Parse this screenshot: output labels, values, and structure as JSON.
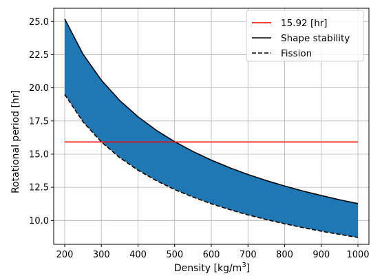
{
  "chart_data": {
    "type": "area",
    "xlabel_text": "Density [kg/m",
    "xlabel_sup": "3",
    "xlabel_tail": "]",
    "ylabel": "Rotational period [hr]",
    "xlim": [
      170,
      1030
    ],
    "ylim": [
      8.2,
      26.0
    ],
    "x_ticks": [
      200,
      300,
      400,
      500,
      600,
      700,
      800,
      900,
      1000
    ],
    "x_tick_labels": [
      "200",
      "300",
      "400",
      "500",
      "600",
      "700",
      "800",
      "900",
      "1000"
    ],
    "y_ticks": [
      10.0,
      12.5,
      15.0,
      17.5,
      20.0,
      22.5,
      25.0
    ],
    "y_tick_labels": [
      "10.0",
      "12.5",
      "15.0",
      "17.5",
      "20.0",
      "22.5",
      "25.0"
    ],
    "grid": true,
    "legend_position": "top-right",
    "fill_color": "#1f77b4",
    "series": [
      {
        "name": "15.92 [hr]",
        "style": "solid",
        "color": "#ff0000",
        "x": [
          200,
          1000
        ],
        "y": [
          15.92,
          15.92
        ]
      },
      {
        "name": "Shape stability",
        "style": "solid",
        "color": "#000000",
        "x": [
          200,
          250,
          300,
          350,
          400,
          450,
          500,
          550,
          600,
          650,
          700,
          750,
          800,
          850,
          900,
          950,
          1000
        ],
        "y": [
          25.2,
          22.54,
          20.58,
          19.05,
          17.82,
          16.8,
          15.94,
          15.2,
          14.55,
          13.98,
          13.47,
          13.01,
          12.6,
          12.22,
          11.88,
          11.56,
          11.27
        ]
      },
      {
        "name": "Fission",
        "style": "dashed",
        "color": "#000000",
        "x": [
          200,
          250,
          300,
          350,
          400,
          450,
          500,
          550,
          600,
          650,
          700,
          750,
          800,
          850,
          900,
          950,
          1000
        ],
        "y": [
          19.5,
          17.44,
          15.92,
          14.74,
          13.79,
          13.0,
          12.33,
          11.76,
          11.26,
          10.82,
          10.42,
          10.07,
          9.75,
          9.46,
          9.19,
          8.95,
          8.72
        ]
      }
    ]
  }
}
